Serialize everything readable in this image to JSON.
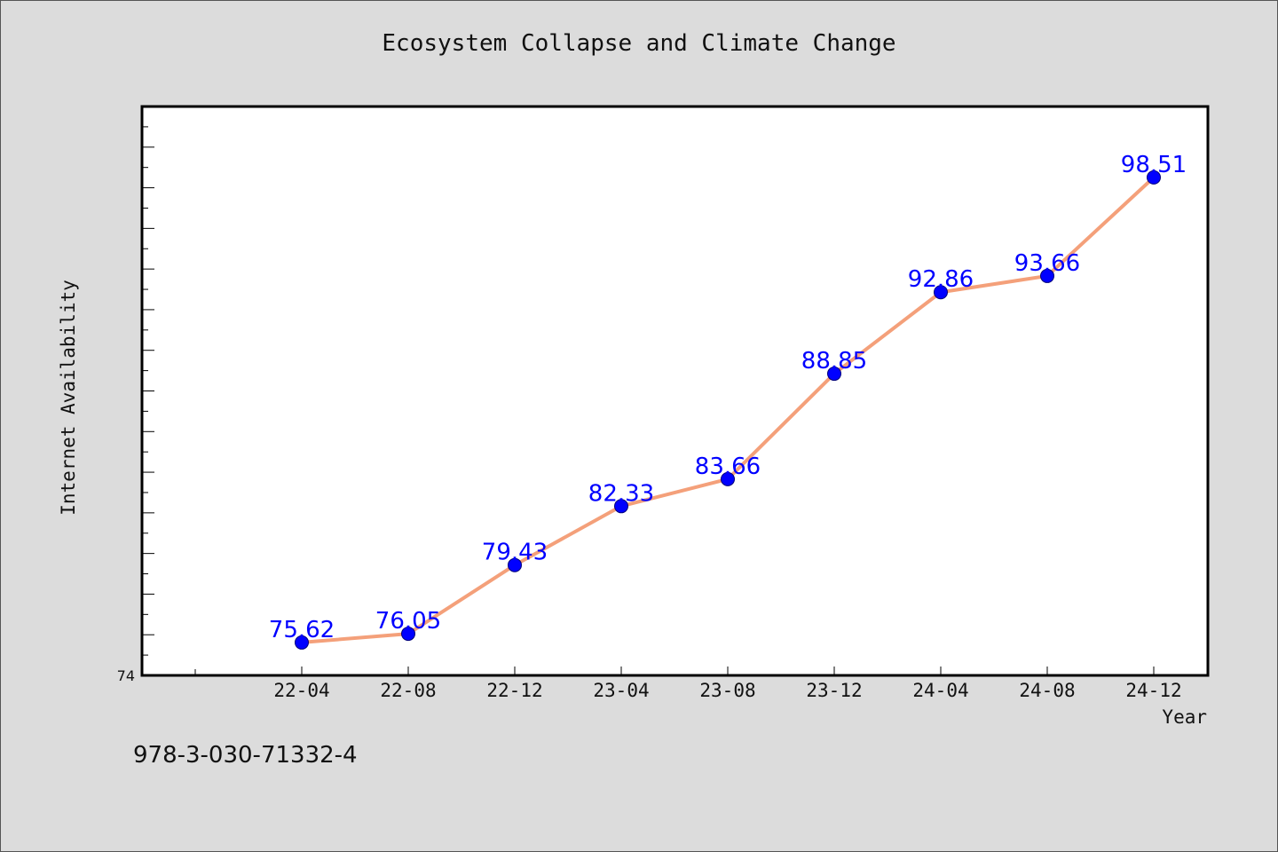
{
  "colors": {
    "background": "#dcdcdc",
    "plot_background": "#ffffff",
    "line": "#f4a07a",
    "marker": "#0000ff",
    "data_label": "#0000ff"
  },
  "footer": {
    "isbn": "978-3-030-71332-4"
  },
  "chart_data": {
    "type": "line",
    "title": "Ecosystem Collapse and Climate Change",
    "xlabel": "Year",
    "ylabel": "Internet Availability",
    "categories": [
      "22-04",
      "22-08",
      "22-12",
      "23-04",
      "23-08",
      "23-12",
      "24-04",
      "24-08",
      "24-12"
    ],
    "series": [
      {
        "values": [
          75.62,
          76.05,
          79.43,
          82.33,
          83.66,
          88.85,
          92.86,
          93.66,
          98.51
        ]
      }
    ],
    "ylim": [
      74,
      102
    ],
    "y_tick_labels": [
      "74"
    ],
    "y_minor_step": 1,
    "data_labels": [
      "75.62",
      "76.05",
      "79.43",
      "82.33",
      "83.66",
      "88.85",
      "92.86",
      "93.66",
      "98.51"
    ],
    "grid": false,
    "legend": "none"
  }
}
